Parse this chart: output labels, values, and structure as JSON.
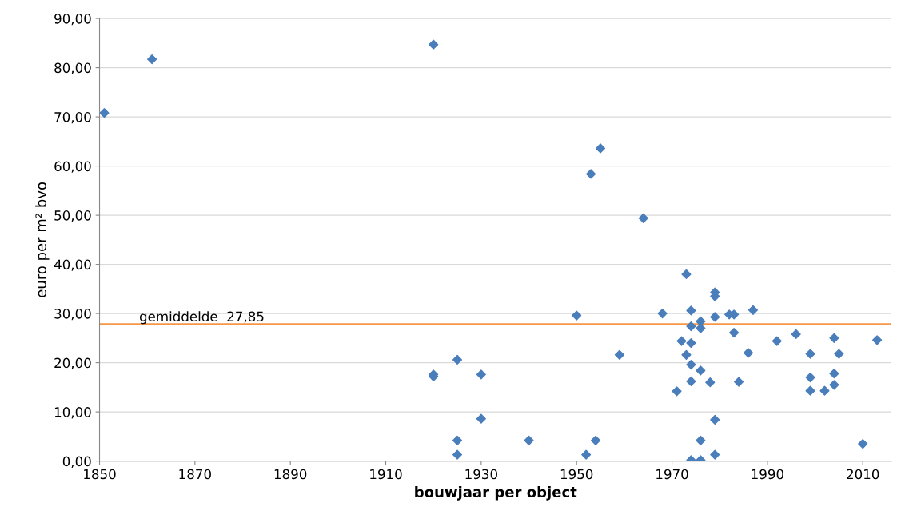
{
  "chart_data": {
    "type": "scatter",
    "xlabel": "bouwjaar per object",
    "ylabel": "euro per m² bvo",
    "x": [
      1851,
      1861,
      1920,
      1920,
      1920,
      1925,
      1925,
      1925,
      1930,
      1930,
      1940,
      1950,
      1952,
      1953,
      1954,
      1955,
      1959,
      1964,
      1968,
      1971,
      1972,
      1973,
      1973,
      1974,
      1974,
      1974,
      1974,
      1974,
      1974,
      1976,
      1976,
      1976,
      1976,
      1976,
      1978,
      1979,
      1979,
      1979,
      1979,
      1979,
      1982,
      1983,
      1983,
      1984,
      1986,
      1987,
      1992,
      1996,
      1999,
      1999,
      1999,
      2002,
      2004,
      2004,
      2004,
      2005,
      2010,
      2013
    ],
    "series": [
      {
        "color": "#4a7ebb",
        "values": [
          70.8,
          81.7,
          84.7,
          17.6,
          17.2,
          20.6,
          4.2,
          1.3,
          17.6,
          8.6,
          4.2,
          29.6,
          1.3,
          58.4,
          4.2,
          63.6,
          21.6,
          49.4,
          30.0,
          14.2,
          24.4,
          38.0,
          21.6,
          30.6,
          27.4,
          24.0,
          19.6,
          16.2,
          0.2,
          28.4,
          27.0,
          18.4,
          4.2,
          0.2,
          16.0,
          34.3,
          33.5,
          29.3,
          8.4,
          1.3,
          29.8,
          29.8,
          26.1,
          16.1,
          22.0,
          30.7,
          24.4,
          25.8,
          21.8,
          17.0,
          14.3,
          14.3,
          25.0,
          17.8,
          15.5,
          21.8,
          3.5,
          24.6
        ]
      }
    ],
    "marker": "diamond",
    "xlim": [
      1850,
      2016
    ],
    "xticks": [
      1850,
      1870,
      1890,
      1910,
      1930,
      1950,
      1970,
      1990,
      2010
    ],
    "ylim": [
      0,
      90
    ],
    "yticks": [
      {
        "value": 0,
        "label": "0,00"
      },
      {
        "value": 10,
        "label": "10,00"
      },
      {
        "value": 20,
        "label": "20,00"
      },
      {
        "value": 30,
        "label": "30,00"
      },
      {
        "value": 40,
        "label": "40,00"
      },
      {
        "value": 50,
        "label": "50,00"
      },
      {
        "value": 60,
        "label": "60,00"
      },
      {
        "value": 70,
        "label": "70,00"
      },
      {
        "value": 80,
        "label": "80,00"
      },
      {
        "value": 90,
        "label": "90,00"
      }
    ],
    "grid": "y",
    "ref_lines": [
      {
        "axis": "y",
        "value": 27.85,
        "label": "gemiddelde  27,85",
        "color": "#f79646"
      }
    ]
  }
}
